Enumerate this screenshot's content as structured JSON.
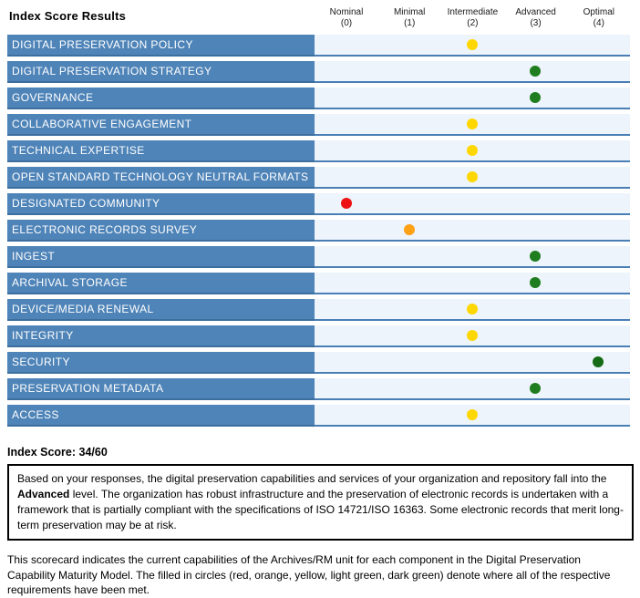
{
  "chart_data": {
    "type": "scatter",
    "title": "Index Score Results",
    "x_axis": {
      "levels": [
        {
          "name": "Nominal",
          "num": "(0)"
        },
        {
          "name": "Minimal",
          "num": "(1)"
        },
        {
          "name": "Intermediate",
          "num": "(2)"
        },
        {
          "name": "Advanced",
          "num": "(3)"
        },
        {
          "name": "Optimal",
          "num": "(4)"
        }
      ]
    },
    "xlim": [
      0,
      4
    ],
    "categories": [
      "DIGITAL PRESERVATION POLICY",
      "DIGITAL PRESERVATION STRATEGY",
      "GOVERNANCE",
      "COLLABORATIVE ENGAGEMENT",
      "TECHNICAL EXPERTISE",
      "OPEN STANDARD TECHNOLOGY NEUTRAL FORMATS",
      "DESIGNATED COMMUNITY",
      "ELECTRONIC RECORDS SURVEY",
      "INGEST",
      "ARCHIVAL STORAGE",
      "DEVICE/MEDIA RENEWAL",
      "INTEGRITY",
      "SECURITY",
      "PRESERVATION METADATA",
      "ACCESS"
    ],
    "values": [
      2,
      3,
      3,
      2,
      2,
      2,
      0,
      1,
      3,
      3,
      2,
      2,
      4,
      3,
      2
    ],
    "point_colors": [
      "#ffd700",
      "#1f7d1f",
      "#1f7d1f",
      "#ffd700",
      "#ffd700",
      "#ffd700",
      "#ee1111",
      "#ffa015",
      "#1f7d1f",
      "#1f7d1f",
      "#ffd700",
      "#ffd700",
      "#156b15",
      "#1f7d1f",
      "#ffd700"
    ],
    "total_score": "34/60"
  },
  "score_heading": "Index Score: 34/60",
  "summary_box": {
    "text_before": "Based on your responses, the digital preservation capabilities and services of your organization and repository fall into the ",
    "bold": "Advanced",
    "text_after": " level. The organization has robust infrastructure and the preservation of electronic records is undertaken with a framework that is partially compliant with the specifications of ISO 14721/ISO 16363. Some electronic records that merit long-term preservation may be at risk."
  },
  "footnote": "This scorecard indicates the current capabilities of the Archives/RM unit for each component in the Digital Preservation Capability Maturity Model. The filled in circles (red, orange, yellow, light green, dark green) denote where all of the respective requirements have been met.",
  "colors": {
    "bar_blue": "#4f84b8",
    "track_fill": "#edf4fb",
    "track_border": "#4a7fb5",
    "nominal_red": "#ee1111",
    "minimal_orange": "#ffa015",
    "intermediate_yellow": "#ffd700",
    "advanced_green": "#1f7d1f",
    "optimal_dark_green": "#156b15"
  }
}
